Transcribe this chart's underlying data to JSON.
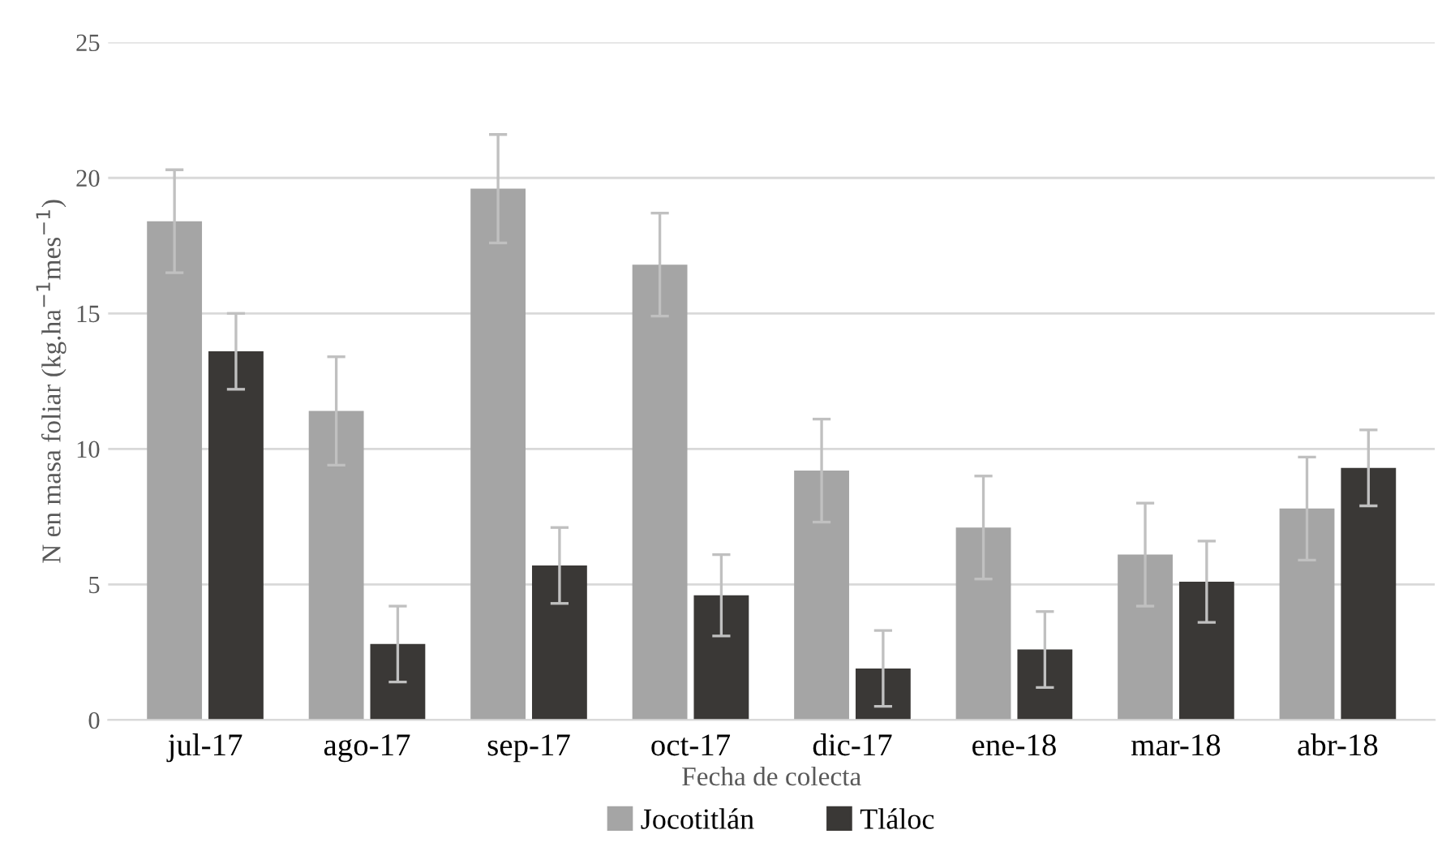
{
  "chart_data": {
    "type": "bar",
    "xlabel": "Fecha de colecta",
    "ylabel": "N en masa foliar (kg.ha$^{−1}$mes$^{−1}$)",
    "categories": [
      "jul-17",
      "ago-17",
      "sep-17",
      "oct-17",
      "dic-17",
      "ene-18",
      "mar-18",
      "abr-18"
    ],
    "series": [
      {
        "name": "Jocotitlán",
        "color": "#a5a5a5",
        "values": [
          18.4,
          11.4,
          19.6,
          16.8,
          9.2,
          7.1,
          6.1,
          7.8
        ],
        "errors": [
          1.9,
          2.0,
          2.0,
          1.9,
          1.9,
          1.9,
          1.9,
          1.9
        ]
      },
      {
        "name": "Tláloc",
        "color": "#3a3836",
        "values": [
          13.6,
          2.8,
          5.7,
          4.6,
          1.9,
          2.6,
          5.1,
          9.3
        ],
        "errors": [
          1.4,
          1.4,
          1.4,
          1.5,
          1.4,
          1.4,
          1.5,
          1.4
        ]
      }
    ],
    "ylim": [
      0,
      25
    ],
    "yticks": [
      0,
      5,
      10,
      15,
      20,
      25
    ],
    "grid": "y",
    "legend": "bottom"
  }
}
